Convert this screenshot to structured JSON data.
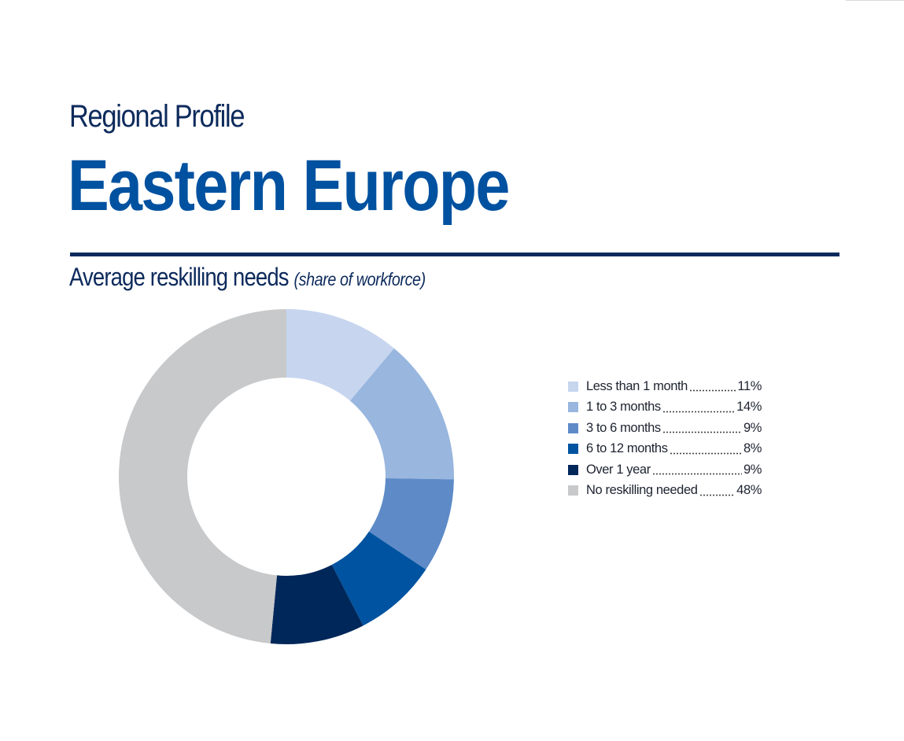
{
  "page": {
    "eyebrow": "Regional Profile",
    "headline": "Eastern Europe",
    "subtitle": "Average reskilling needs",
    "subtitle_note": "(share of workforce)"
  },
  "chart_data": {
    "type": "pie",
    "subtitle": "Average reskilling needs (share of workforce)",
    "legend_position": "right",
    "categories": [
      "Less than 1 month",
      "1 to 3 months",
      "3 to 6 months",
      "6 to 12 months",
      "Over 1 year",
      "No reskilling needed"
    ],
    "values": [
      11,
      14,
      9,
      8,
      9,
      48
    ],
    "value_labels": [
      "11%",
      "14%",
      "9%",
      "8%",
      "9%",
      "48%"
    ],
    "colors": [
      "#c7d5ef",
      "#98b6de",
      "#5e8bc8",
      "#0053a0",
      "#00275a",
      "#c8c9cb"
    ]
  }
}
